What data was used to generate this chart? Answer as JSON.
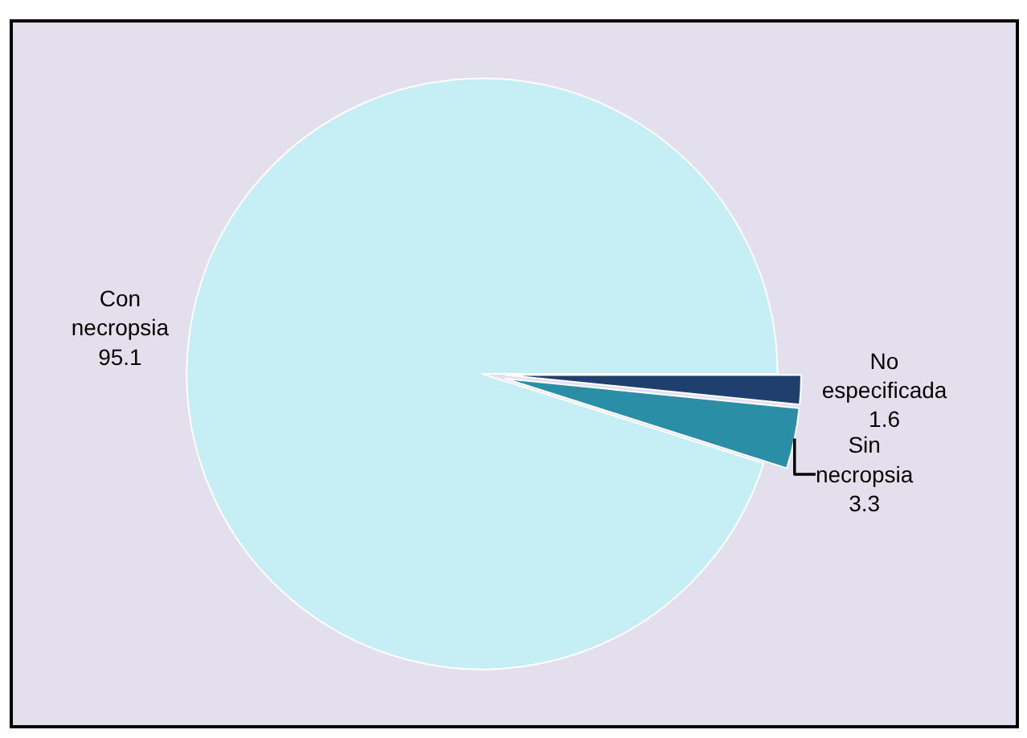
{
  "chart_data": {
    "type": "pie",
    "categories": [
      "No especificada",
      "Sin necropsia",
      "Con necropsia"
    ],
    "values": [
      1.6,
      3.3,
      95.1
    ],
    "colors": [
      "#1f3f6e",
      "#2a8fa6",
      "#c5eef5"
    ],
    "data_labels": true,
    "legend": false
  }
}
